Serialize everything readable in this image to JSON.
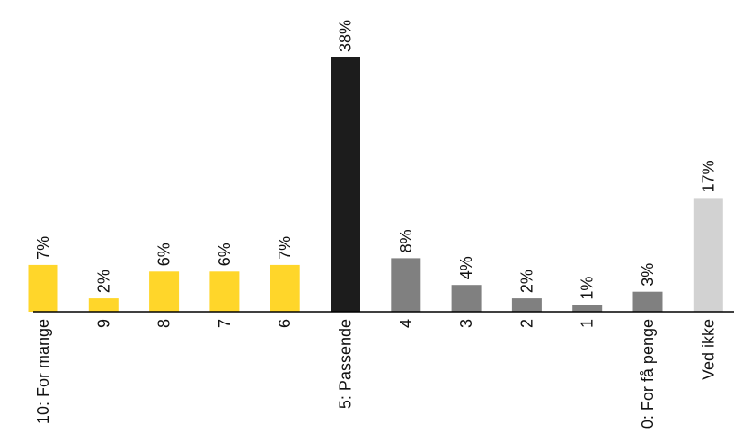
{
  "chart_data": {
    "type": "bar",
    "title": "",
    "xlabel": "",
    "ylabel": "",
    "ylim": [
      0,
      38
    ],
    "grid": false,
    "legend": "none",
    "categories": [
      "10: For mange",
      "9",
      "8",
      "7",
      "6",
      "5: Passende",
      "4",
      "3",
      "2",
      "1",
      "0: For få penge",
      "Ved ikke"
    ],
    "values": [
      7,
      2,
      6,
      6,
      7,
      38,
      8,
      4,
      2,
      1,
      3,
      17
    ],
    "value_labels": [
      "7%",
      "2%",
      "6%",
      "6%",
      "7%",
      "38%",
      "8%",
      "4%",
      "2%",
      "1%",
      "3%",
      "17%"
    ],
    "bar_colors": [
      "#FFD62A",
      "#FFD62A",
      "#FFD62A",
      "#FFD62A",
      "#FFD62A",
      "#1C1C1C",
      "#808080",
      "#808080",
      "#808080",
      "#808080",
      "#808080",
      "#D2D2D2"
    ]
  }
}
